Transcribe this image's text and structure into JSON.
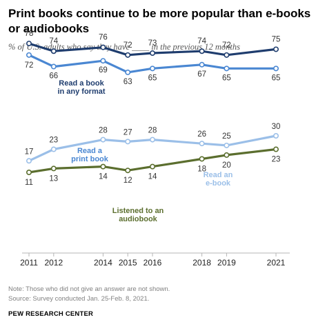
{
  "title": "Print books continue to be more popular than e-books or audiobooks",
  "subtitle_prefix": "% of U.S. adults who say they have",
  "subtitle_suffix": "in the previous 12 months",
  "note": "Note: Those who did not give an answer are not shown.",
  "source": "Source: Survey conducted Jan. 25-Feb. 8, 2021.",
  "organization": "PEW RESEARCH CENTER",
  "chart_data": {
    "type": "line",
    "title": "Print books continue to be more popular than e-books or audiobooks",
    "subtitle": "% of U.S. adults who say they have ___ in the previous 12 months",
    "x": [
      "2011",
      "2012",
      "2014",
      "2015",
      "2016",
      "2018",
      "2019",
      "2021"
    ],
    "ylim": [
      0,
      100
    ],
    "grid": false,
    "series": [
      {
        "name": "Read a book in any format",
        "label_lines": [
          "Read a book",
          "in any format"
        ],
        "color": "#1f3d6e",
        "values": [
          78,
          74,
          76,
          72,
          73,
          74,
          72,
          75
        ]
      },
      {
        "name": "Read a print book",
        "label_lines": [
          "Read a",
          "print book"
        ],
        "color": "#4a87d2",
        "values": [
          72,
          66,
          69,
          63,
          65,
          67,
          65,
          65
        ]
      },
      {
        "name": "Read an e-book",
        "label_lines": [
          "Read an",
          "e-book"
        ],
        "color": "#9bbfe8",
        "values": [
          17,
          23,
          28,
          27,
          28,
          26,
          25,
          30
        ]
      },
      {
        "name": "Listened to an audiobook",
        "label_lines": [
          "Listened to an",
          "audiobook"
        ],
        "color": "#5b6e2e",
        "values": [
          11,
          13,
          14,
          12,
          14,
          18,
          20,
          23
        ]
      }
    ]
  }
}
